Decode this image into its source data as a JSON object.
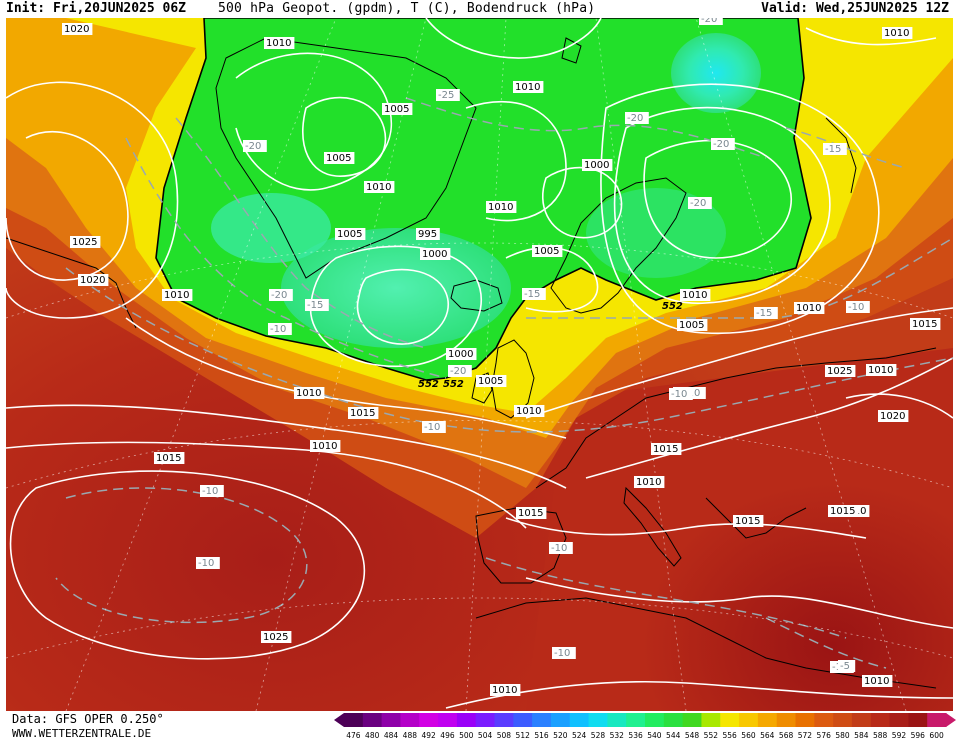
{
  "header": {
    "init": "Init: Fri,20JUN2025 06Z",
    "title": "500 hPa Geopot. (gpdm), T (C), Bodendruck (hPa)",
    "valid": "Valid: Wed,25JUN2025 12Z"
  },
  "footer": {
    "data_source": "Data: GFS OPER 0.250°",
    "website": "WWW.WETTERZENTRALE.DE"
  },
  "colors": {
    "trough_green": "#22e02a",
    "trough_deep": "#3ef09a",
    "yellow": "#f5e600",
    "orange": "#f2a800",
    "dark_orange": "#e07410",
    "red_orange": "#cf4c14",
    "red": "#b82a18",
    "dark_red": "#9a1414"
  },
  "color_scale": {
    "ticks": [
      "476",
      "480",
      "484",
      "488",
      "492",
      "496",
      "500",
      "504",
      "508",
      "512",
      "516",
      "520",
      "524",
      "528",
      "532",
      "536",
      "540",
      "544",
      "548",
      "552",
      "556",
      "560",
      "564",
      "568",
      "572",
      "576",
      "580",
      "584",
      "588",
      "592",
      "596",
      "600"
    ],
    "colors": [
      "#4d0057",
      "#6a0080",
      "#8e00a8",
      "#b400c8",
      "#d200e4",
      "#c000f0",
      "#9a00f8",
      "#7a1cff",
      "#5a3cff",
      "#3c5cff",
      "#2a80ff",
      "#1aa0ff",
      "#10c0ff",
      "#10dcf0",
      "#18e8c0",
      "#20f090",
      "#22ec60",
      "#2ae040",
      "#40d820",
      "#a8e800",
      "#f5e600",
      "#f8c800",
      "#f5a800",
      "#ef8c00",
      "#e87000",
      "#dc5a10",
      "#cf4c14",
      "#c23c18",
      "#b82a18",
      "#a81e18",
      "#9a1414",
      "#c81a6a"
    ]
  },
  "map_labels": {
    "isobars": [
      "1020",
      "1010",
      "1005",
      "1010",
      "1005",
      "1000",
      "1010",
      "1010",
      "1005",
      "995",
      "1000",
      "1005",
      "1010",
      "1025",
      "1020",
      "1010",
      "1005",
      "1000",
      "1000",
      "1005",
      "1010",
      "1010",
      "1015",
      "1010",
      "1015",
      "1020",
      "1025",
      "1015",
      "1010",
      "1015",
      "1010",
      "1015",
      "1015",
      "1010",
      "1025",
      "1010",
      "1010",
      "1010",
      "1015",
      "1010"
    ],
    "isotherms": [
      "-20",
      "-25",
      "-20",
      "-20",
      "-20",
      "-20",
      "-15",
      "-15",
      "-20",
      "-15",
      "-10",
      "-15",
      "-10",
      "-10",
      "-20",
      "-10",
      "-10",
      "-10",
      "-10",
      "-10",
      "-10",
      "-10",
      "-5",
      "-10"
    ],
    "geopotential": [
      "552",
      "552",
      "552"
    ]
  }
}
